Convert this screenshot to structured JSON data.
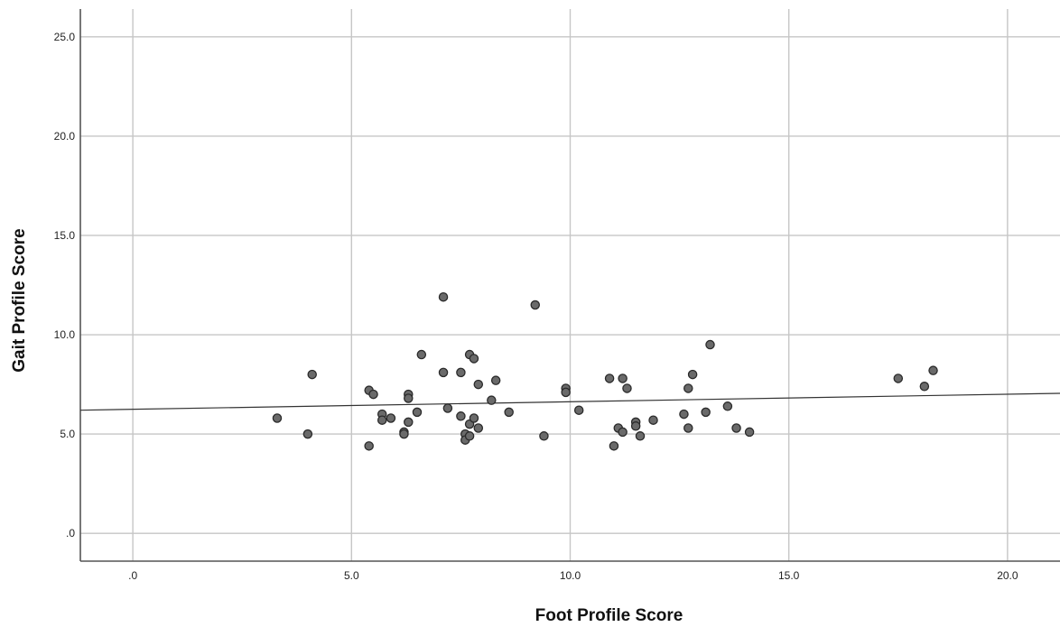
{
  "chart_data": {
    "type": "scatter",
    "xlabel": "Foot Profile Score",
    "ylabel": "Gait Profile Score",
    "xlim": [
      -1.2,
      21.2
    ],
    "ylim": [
      -1.4,
      26.4
    ],
    "x_ticks": [
      0,
      5,
      10,
      15,
      20
    ],
    "y_ticks": [
      0,
      5,
      10,
      15,
      20,
      25
    ],
    "x_tick_labels": [
      ".0",
      "5.0",
      "10.0",
      "15.0",
      "20.0"
    ],
    "y_tick_labels": [
      ".0",
      "5.0",
      "10.0",
      "15.0",
      "20.0",
      "25.0"
    ],
    "grid": true,
    "legend": "none",
    "colors": {
      "marker_fill": "#6a6a6a",
      "marker_edge": "#2a2a2a",
      "gridline": "#c6c6c6",
      "fit_line": "#333333"
    },
    "points": [
      [
        3.3,
        5.8
      ],
      [
        4.0,
        5.0
      ],
      [
        4.1,
        8.0
      ],
      [
        5.4,
        7.2
      ],
      [
        5.5,
        7.0
      ],
      [
        5.4,
        4.4
      ],
      [
        5.7,
        6.0
      ],
      [
        5.7,
        5.7
      ],
      [
        5.9,
        5.8
      ],
      [
        6.2,
        5.1
      ],
      [
        6.2,
        5.0
      ],
      [
        6.3,
        7.0
      ],
      [
        6.3,
        6.8
      ],
      [
        6.3,
        5.6
      ],
      [
        6.5,
        6.1
      ],
      [
        6.6,
        9.0
      ],
      [
        7.1,
        11.9
      ],
      [
        7.1,
        8.1
      ],
      [
        7.2,
        6.3
      ],
      [
        7.5,
        8.1
      ],
      [
        7.5,
        5.9
      ],
      [
        7.6,
        5.0
      ],
      [
        7.6,
        4.7
      ],
      [
        7.7,
        9.0
      ],
      [
        7.7,
        5.5
      ],
      [
        7.7,
        4.9
      ],
      [
        7.8,
        8.8
      ],
      [
        7.8,
        5.8
      ],
      [
        7.9,
        7.5
      ],
      [
        7.9,
        5.3
      ],
      [
        8.2,
        6.7
      ],
      [
        8.3,
        7.7
      ],
      [
        8.6,
        6.1
      ],
      [
        9.2,
        11.5
      ],
      [
        9.4,
        4.9
      ],
      [
        9.9,
        7.3
      ],
      [
        9.9,
        7.1
      ],
      [
        10.2,
        6.2
      ],
      [
        10.9,
        7.8
      ],
      [
        11.0,
        4.4
      ],
      [
        11.1,
        5.3
      ],
      [
        11.2,
        7.8
      ],
      [
        11.2,
        5.1
      ],
      [
        11.3,
        7.3
      ],
      [
        11.5,
        5.6
      ],
      [
        11.5,
        5.4
      ],
      [
        11.6,
        4.9
      ],
      [
        11.9,
        5.7
      ],
      [
        12.6,
        6.0
      ],
      [
        12.7,
        7.3
      ],
      [
        12.7,
        5.3
      ],
      [
        12.8,
        8.0
      ],
      [
        13.1,
        6.1
      ],
      [
        13.2,
        9.5
      ],
      [
        13.6,
        6.4
      ],
      [
        13.8,
        5.3
      ],
      [
        14.1,
        5.1
      ],
      [
        17.5,
        7.8
      ],
      [
        18.1,
        7.4
      ],
      [
        18.3,
        8.2
      ]
    ],
    "fit_line": {
      "x": [
        -1.2,
        21.2
      ],
      "y": [
        6.2,
        7.05
      ]
    }
  }
}
